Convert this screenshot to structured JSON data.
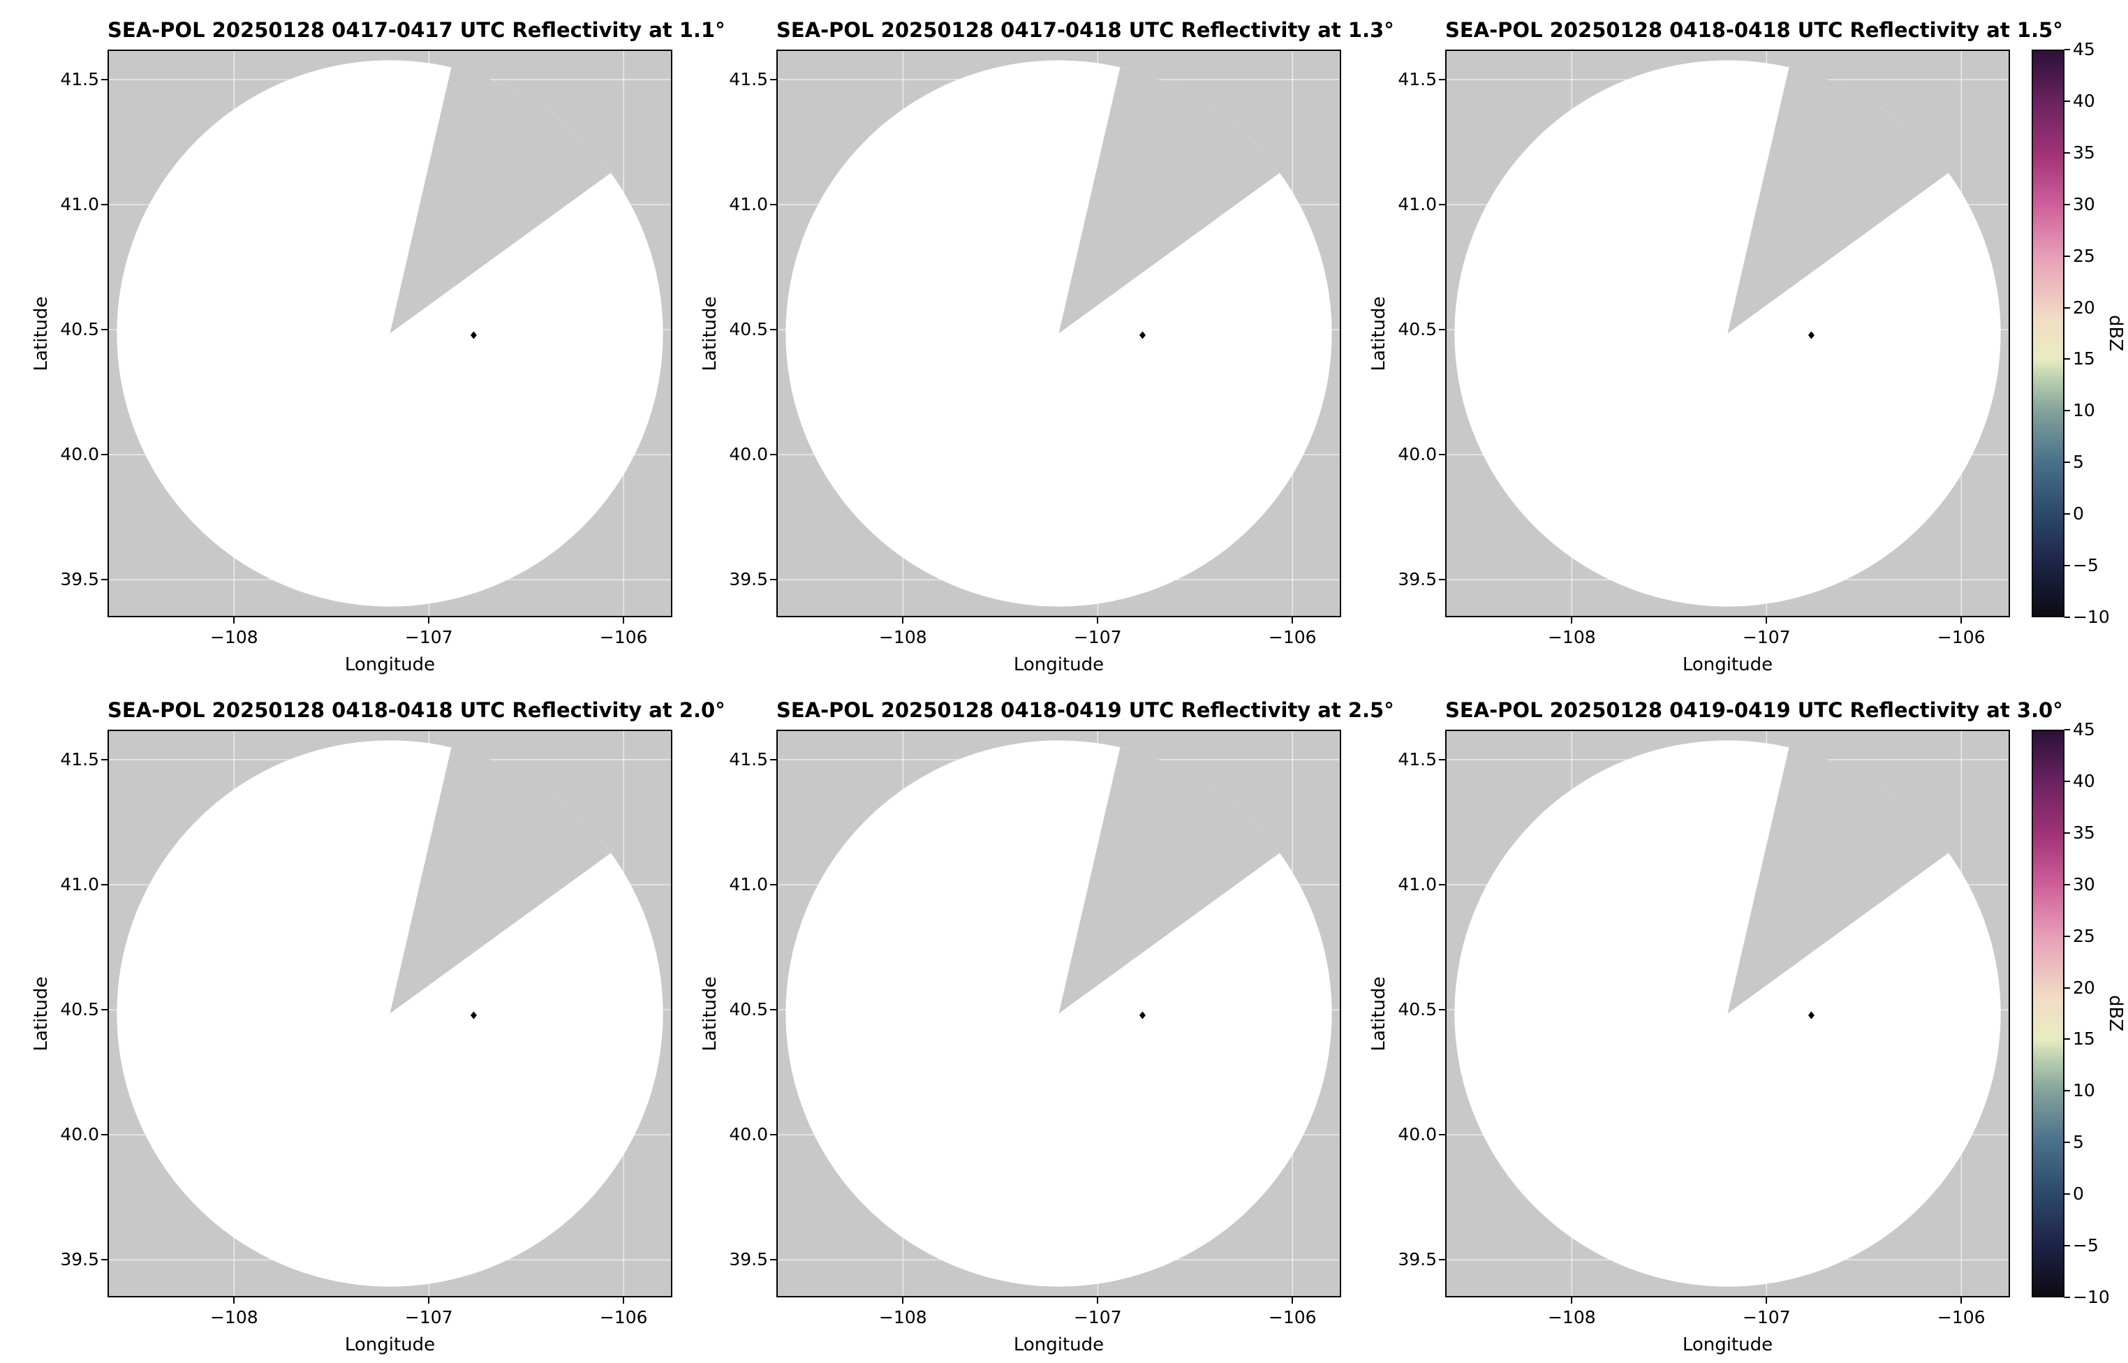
{
  "figure": {
    "background": "#ffffff"
  },
  "chart_data": {
    "type": "heatmap",
    "layout": "2x3 grid of radar PPI reflectivity maps with one shared colorbar per row",
    "panels": [
      {
        "title": "SEA-POL 20250128 0417-0417 UTC Reflectivity at 1.1°",
        "date": "20250128",
        "time_utc": "0417-0417",
        "elevation_deg": 1.1
      },
      {
        "title": "SEA-POL 20250128 0417-0418 UTC Reflectivity at 1.3°",
        "date": "20250128",
        "time_utc": "0417-0418",
        "elevation_deg": 1.3
      },
      {
        "title": "SEA-POL 20250128 0418-0418 UTC Reflectivity at 1.5°",
        "date": "20250128",
        "time_utc": "0418-0418",
        "elevation_deg": 1.5
      },
      {
        "title": "SEA-POL 20250128 0418-0418 UTC Reflectivity at 2.0°",
        "date": "20250128",
        "time_utc": "0418-0418",
        "elevation_deg": 2.0
      },
      {
        "title": "SEA-POL 20250128 0418-0419 UTC Reflectivity at 2.5°",
        "date": "20250128",
        "time_utc": "0418-0419",
        "elevation_deg": 2.5
      },
      {
        "title": "SEA-POL 20250128 0419-0419 UTC Reflectivity at 3.0°",
        "date": "20250128",
        "time_utc": "0419-0419",
        "elevation_deg": 3.0
      }
    ],
    "xlabel": "Longitude",
    "ylabel": "Latitude",
    "xlim": [
      -108.65,
      -105.75
    ],
    "ylim": [
      39.35,
      41.62
    ],
    "x_ticks": {
      "values": [
        -108,
        -107,
        -106
      ],
      "labels": [
        "−108",
        "−107",
        "−106"
      ]
    },
    "y_ticks": {
      "values": [
        41.5,
        41.0,
        40.5,
        40.0,
        39.5
      ],
      "labels": [
        "41.5",
        "41.0",
        "40.5",
        "40.0",
        "39.5"
      ]
    },
    "grid": true,
    "coverage": {
      "center_lon": -107.2,
      "center_lat": 40.485,
      "radius_lon_deg": 1.402,
      "missing_sector_azimuth_deg": [
        13,
        54
      ],
      "fill": "#ffffff",
      "background": "#c8c8c8"
    },
    "site_marker": {
      "lon": -106.77,
      "lat": 40.478,
      "color": "#000000",
      "shape": "diamond"
    },
    "colorbar": {
      "label": "dBZ",
      "min": -10,
      "max": 45,
      "ticks": [
        45,
        40,
        35,
        30,
        25,
        20,
        15,
        10,
        5,
        0,
        -5,
        -10
      ],
      "tick_labels": [
        "45",
        "40",
        "35",
        "30",
        "25",
        "20",
        "15",
        "10",
        "5",
        "0",
        "−5",
        "−10"
      ],
      "gradient": [
        {
          "value": -10,
          "color": "#0d0a12"
        },
        {
          "value": -5,
          "color": "#1d2347"
        },
        {
          "value": 0,
          "color": "#2c4a6b"
        },
        {
          "value": 5,
          "color": "#49708a"
        },
        {
          "value": 10,
          "color": "#84a39c"
        },
        {
          "value": 13,
          "color": "#b9cfae"
        },
        {
          "value": 15,
          "color": "#e9ecc0"
        },
        {
          "value": 19,
          "color": "#f2dcc5"
        },
        {
          "value": 25,
          "color": "#e79fb8"
        },
        {
          "value": 30,
          "color": "#cf5f9b"
        },
        {
          "value": 35,
          "color": "#a03277"
        },
        {
          "value": 40,
          "color": "#6b2361"
        },
        {
          "value": 45,
          "color": "#2b1038"
        }
      ]
    }
  }
}
